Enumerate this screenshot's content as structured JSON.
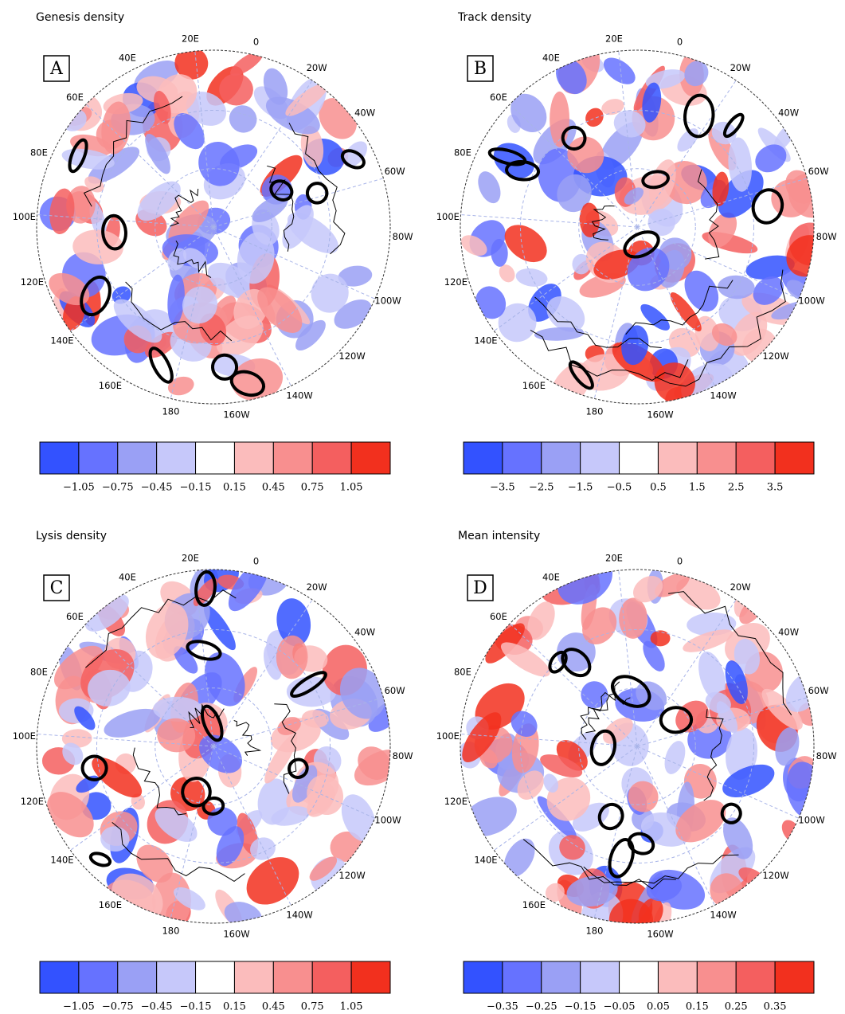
{
  "longitude_labels": [
    "20E",
    "0",
    "20W",
    "40W",
    "60W",
    "80W",
    "100W",
    "120W",
    "140W",
    "160W",
    "180",
    "160E",
    "140E",
    "120E",
    "100E",
    "80E",
    "60E",
    "40E"
  ],
  "panels": [
    {
      "title": "Genesis density",
      "label": "A",
      "colorbar": {
        "colors": [
          "#3352ff",
          "#6672ff",
          "#9aa0f5",
          "#c6c8fa",
          "#ffffff",
          "#fbbcbc",
          "#f88f8f",
          "#f45f5f",
          "#f2301e"
        ],
        "ticks": [
          {
            "value": -1.05,
            "label": "−1.05"
          },
          {
            "value": -0.75,
            "label": "−0.75"
          },
          {
            "value": -0.45,
            "label": "−0.45"
          },
          {
            "value": -0.15,
            "label": "−0.15"
          },
          0.15,
          0.45,
          0.75,
          1.05
        ]
      }
    },
    {
      "title": "Track density",
      "label": "B",
      "colorbar": {
        "colors": [
          "#3352ff",
          "#6672ff",
          "#9aa0f5",
          "#c6c8fa",
          "#ffffff",
          "#fbbcbc",
          "#f88f8f",
          "#f45f5f",
          "#f2301e"
        ],
        "ticks": [
          {
            "value": -3.5,
            "label": "−3.5"
          },
          {
            "value": -2.5,
            "label": "−2.5"
          },
          {
            "value": -1.5,
            "label": "−1.5"
          },
          {
            "value": -0.5,
            "label": "−0.5"
          },
          0.5,
          1.5,
          2.5,
          3.5
        ]
      }
    },
    {
      "title": "Lysis density",
      "label": "C",
      "colorbar": {
        "colors": [
          "#3352ff",
          "#6672ff",
          "#9aa0f5",
          "#c6c8fa",
          "#ffffff",
          "#fbbcbc",
          "#f88f8f",
          "#f45f5f",
          "#f2301e"
        ],
        "ticks": [
          {
            "value": -1.05,
            "label": "−1.05"
          },
          {
            "value": -0.75,
            "label": "−0.75"
          },
          {
            "value": -0.45,
            "label": "−0.45"
          },
          {
            "value": -0.15,
            "label": "−0.15"
          },
          0.15,
          0.45,
          0.75,
          1.05
        ]
      }
    },
    {
      "title": "Mean intensity",
      "label": "D",
      "colorbar": {
        "colors": [
          "#3352ff",
          "#6672ff",
          "#9aa0f5",
          "#c6c8fa",
          "#ffffff",
          "#fbbcbc",
          "#f88f8f",
          "#f45f5f",
          "#f2301e"
        ],
        "ticks": [
          {
            "value": -0.35,
            "label": "−0.35"
          },
          {
            "value": -0.25,
            "label": "−0.25"
          },
          {
            "value": -0.15,
            "label": "−0.15"
          },
          {
            "value": -0.05,
            "label": "−0.05"
          },
          0.05,
          0.15,
          0.25,
          0.35
        ]
      }
    }
  ]
}
